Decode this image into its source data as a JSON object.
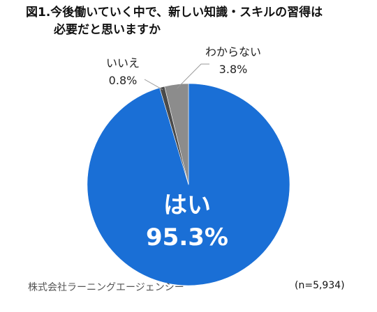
{
  "chart_data": {
    "type": "pie",
    "title_line1": "図1.今後働いていく中で、新しい知識・スキルの習得は",
    "title_line2": "必要だと思いますか",
    "slices": [
      {
        "label": "はい",
        "value": 95.3,
        "value_text": "95.3%",
        "color": "#1a6fd6"
      },
      {
        "label": "いいえ",
        "value": 0.8,
        "value_text": "0.8%",
        "color": "#4a4a4a"
      },
      {
        "label": "わからない",
        "value": 3.8,
        "value_text": "3.8%",
        "color": "#8c8c8c"
      }
    ],
    "start": "12 o'clock",
    "direction": "clockwise"
  },
  "footer": {
    "source": "株式会社ラーニングエージェンシー",
    "n": "(n=5,934)"
  }
}
